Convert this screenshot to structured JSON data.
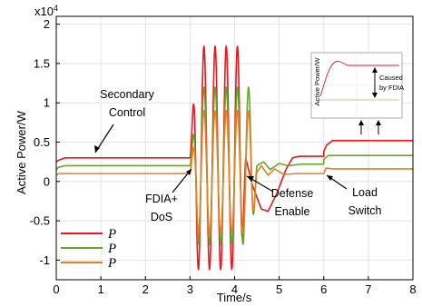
{
  "chart_data": {
    "type": "line",
    "title": "",
    "xlabel": "Time/s",
    "ylabel": "Active Power/W",
    "y_multiplier": "x10",
    "y_multiplier_exp": "4",
    "xlim": [
      0,
      8
    ],
    "ylim": [
      -1.25,
      2.1
    ],
    "x_ticks": [
      "0",
      "1",
      "2",
      "3",
      "4",
      "5",
      "6",
      "7",
      "8"
    ],
    "y_ticks": [
      "2",
      "1.5",
      "1",
      "0.5",
      "0",
      "-0.5",
      "-1"
    ],
    "y_tick_values": [
      2,
      1.5,
      1,
      0.5,
      0,
      -0.5,
      -1
    ],
    "grid": true,
    "legend_position": "bottom-left",
    "series": [
      {
        "name": "P",
        "color": "#e8171b",
        "steady": [
          [
            0,
            0.25
          ],
          [
            0.05,
            0.27
          ],
          [
            0.2,
            0.3
          ],
          [
            3.0,
            0.3
          ]
        ],
        "oscillation": {
          "t_start": 3.0,
          "t_end": 4.25,
          "center": 0.3,
          "amplitude": 1.42,
          "cycles": 5
        },
        "recovery": [
          [
            4.25,
            0.3
          ],
          [
            4.4,
            -0.05
          ],
          [
            4.6,
            -0.35
          ],
          [
            4.75,
            -0.38
          ],
          [
            4.95,
            -0.15
          ],
          [
            5.15,
            0.15
          ],
          [
            5.3,
            0.3
          ],
          [
            5.45,
            0.32
          ],
          [
            6.0,
            0.32
          ],
          [
            6.0,
            0.38
          ],
          [
            6.06,
            0.46
          ],
          [
            6.2,
            0.52
          ],
          [
            8.0,
            0.52
          ]
        ]
      },
      {
        "name": "P",
        "color": "#6aa32a",
        "steady": [
          [
            0,
            0.15
          ],
          [
            0.05,
            0.18
          ],
          [
            0.2,
            0.2
          ],
          [
            3.0,
            0.2
          ]
        ],
        "oscillation": {
          "t_start": 3.0,
          "t_end": 4.5,
          "center": 0.2,
          "amplitude": 1.0,
          "cycles": 6
        },
        "recovery": [
          [
            4.5,
            0.2
          ],
          [
            4.65,
            0.25
          ],
          [
            4.8,
            0.15
          ],
          [
            5.0,
            0.23
          ],
          [
            5.2,
            0.2
          ],
          [
            5.5,
            0.22
          ],
          [
            6.0,
            0.22
          ],
          [
            6.0,
            0.28
          ],
          [
            6.1,
            0.33
          ],
          [
            6.3,
            0.33
          ],
          [
            8.0,
            0.33
          ]
        ]
      },
      {
        "name": "P",
        "color": "#e67e22",
        "steady": [
          [
            0,
            0.08
          ],
          [
            0.05,
            0.1
          ],
          [
            0.2,
            0.1
          ],
          [
            3.0,
            0.1
          ]
        ],
        "oscillation": {
          "t_start": 3.0,
          "t_end": 4.5,
          "center": 0.12,
          "amplitude": 0.78,
          "cycles": 6
        },
        "recovery": [
          [
            4.5,
            0.12
          ],
          [
            4.6,
            0.2
          ],
          [
            4.75,
            0.08
          ],
          [
            4.9,
            0.16
          ],
          [
            5.1,
            0.09
          ],
          [
            5.4,
            0.1
          ],
          [
            6.0,
            0.1
          ],
          [
            6.05,
            0.17
          ],
          [
            6.2,
            0.16
          ],
          [
            8.0,
            0.16
          ]
        ]
      }
    ],
    "annotations": [
      {
        "name": "secondary-control",
        "lines": [
          "Secondary",
          "Control"
        ]
      },
      {
        "name": "fdia-dos",
        "lines": [
          "FDIA+",
          "DoS"
        ]
      },
      {
        "name": "defense-enable",
        "lines": [
          "Defense",
          "Enable"
        ]
      },
      {
        "name": "load-switch",
        "lines": [
          "Load",
          "Switch"
        ]
      }
    ],
    "inset": {
      "ylabel": "Active Power/W",
      "caption_lines": [
        "Caused",
        "by FDIA"
      ]
    }
  }
}
